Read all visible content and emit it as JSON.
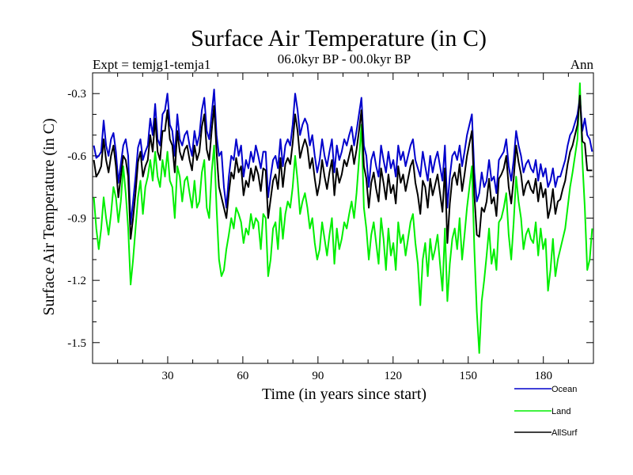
{
  "chart_data": {
    "type": "line",
    "title": "Surface Air Temperature (in C)",
    "subtitle_left": "Expt = temjg1-temja1",
    "subtitle_center": "06.0kyr BP - 00.0kyr BP",
    "subtitle_right": "Ann",
    "xlabel": "Time (in years since start)",
    "ylabel": "Surface Air Temperature (in C)",
    "xlim": [
      0,
      200
    ],
    "ylim": [
      -1.6,
      -0.2
    ],
    "xticks": [
      30,
      60,
      90,
      120,
      150,
      180
    ],
    "xtick_labels": [
      "30",
      "60",
      "90",
      "120",
      "150",
      "180"
    ],
    "yticks": [
      -1.5,
      -1.2,
      -0.9,
      -0.6,
      -0.3
    ],
    "ytick_labels": [
      "-1.5",
      "-1.2",
      "-0.9",
      "-0.6",
      "-0.3"
    ],
    "series": [
      {
        "name": "Ocean",
        "color": "#0000cc",
        "values": [
          -0.55,
          -0.61,
          -0.6,
          -0.58,
          -0.43,
          -0.55,
          -0.6,
          -0.52,
          -0.49,
          -0.58,
          -0.73,
          -0.64,
          -0.55,
          -0.52,
          -0.6,
          -0.93,
          -0.82,
          -0.7,
          -0.56,
          -0.52,
          -0.62,
          -0.58,
          -0.55,
          -0.42,
          -0.5,
          -0.35,
          -0.52,
          -0.55,
          -0.4,
          -0.38,
          -0.3,
          -0.45,
          -0.48,
          -0.6,
          -0.4,
          -0.52,
          -0.55,
          -0.5,
          -0.48,
          -0.55,
          -0.6,
          -0.48,
          -0.55,
          -0.5,
          -0.38,
          -0.32,
          -0.48,
          -0.52,
          -0.4,
          -0.28,
          -0.5,
          -0.6,
          -0.58,
          -0.75,
          -0.85,
          -0.7,
          -0.6,
          -0.62,
          -0.52,
          -0.6,
          -0.55,
          -0.7,
          -0.62,
          -0.66,
          -0.58,
          -0.63,
          -0.55,
          -0.6,
          -0.66,
          -0.58,
          -0.58,
          -0.8,
          -0.7,
          -0.62,
          -0.6,
          -0.66,
          -0.52,
          -0.65,
          -0.55,
          -0.52,
          -0.55,
          -0.45,
          -0.3,
          -0.38,
          -0.5,
          -0.45,
          -0.42,
          -0.45,
          -0.55,
          -0.5,
          -0.6,
          -0.68,
          -0.62,
          -0.52,
          -0.6,
          -0.65,
          -0.58,
          -0.52,
          -0.68,
          -0.55,
          -0.62,
          -0.58,
          -0.52,
          -0.55,
          -0.5,
          -0.46,
          -0.55,
          -0.48,
          -0.4,
          -0.32,
          -0.55,
          -0.6,
          -0.75,
          -0.62,
          -0.58,
          -0.65,
          -0.7,
          -0.55,
          -0.62,
          -0.68,
          -0.58,
          -0.66,
          -0.62,
          -0.7,
          -0.55,
          -0.62,
          -0.58,
          -0.65,
          -0.6,
          -0.55,
          -0.52,
          -0.62,
          -0.66,
          -0.7,
          -0.58,
          -0.65,
          -0.72,
          -0.6,
          -0.68,
          -0.62,
          -0.58,
          -0.65,
          -0.72,
          -0.55,
          -0.85,
          -0.7,
          -0.6,
          -0.58,
          -0.62,
          -0.55,
          -0.65,
          -0.58,
          -0.5,
          -0.45,
          -0.4,
          -0.68,
          -0.82,
          -0.78,
          -0.68,
          -0.75,
          -0.72,
          -0.62,
          -0.72,
          -0.7,
          -0.78,
          -0.62,
          -0.6,
          -0.58,
          -0.52,
          -0.65,
          -0.72,
          -0.62,
          -0.48,
          -0.55,
          -0.6,
          -0.68,
          -0.64,
          -0.62,
          -0.66,
          -0.68,
          -0.62,
          -0.72,
          -0.64,
          -0.7,
          -0.66,
          -0.75,
          -0.72,
          -0.66,
          -0.75,
          -0.7,
          -0.7,
          -0.66,
          -0.62,
          -0.55,
          -0.5,
          -0.48,
          -0.44,
          -0.4,
          -0.32,
          -0.48,
          -0.42,
          -0.5,
          -0.52,
          -0.58
        ]
      },
      {
        "name": "Land",
        "color": "#00ee00",
        "values": [
          -0.8,
          -0.95,
          -1.05,
          -0.95,
          -0.8,
          -0.9,
          -0.98,
          -0.88,
          -0.75,
          -0.8,
          -0.92,
          -0.82,
          -0.65,
          -0.78,
          -0.95,
          -1.22,
          -1.1,
          -0.95,
          -0.8,
          -0.72,
          -0.88,
          -0.75,
          -0.7,
          -0.62,
          -0.72,
          -0.58,
          -0.7,
          -0.75,
          -0.62,
          -0.7,
          -0.58,
          -0.72,
          -0.75,
          -0.9,
          -0.65,
          -0.7,
          -0.82,
          -0.72,
          -0.7,
          -0.78,
          -0.85,
          -0.72,
          -0.85,
          -0.82,
          -0.68,
          -0.62,
          -0.85,
          -0.9,
          -0.68,
          -0.55,
          -0.85,
          -1.1,
          -1.18,
          -1.15,
          -1.05,
          -0.98,
          -0.9,
          -0.95,
          -0.85,
          -0.88,
          -0.92,
          -1.02,
          -0.95,
          -0.98,
          -0.88,
          -0.95,
          -0.9,
          -0.92,
          -1.05,
          -0.88,
          -0.9,
          -1.18,
          -1.1,
          -0.95,
          -0.92,
          -1.05,
          -0.85,
          -1.0,
          -0.88,
          -0.82,
          -0.85,
          -0.75,
          -0.6,
          -0.72,
          -0.88,
          -0.82,
          -0.78,
          -0.85,
          -0.95,
          -0.9,
          -1.02,
          -1.1,
          -1.05,
          -0.92,
          -1.0,
          -1.08,
          -0.98,
          -0.9,
          -1.12,
          -0.95,
          -1.05,
          -1.0,
          -0.92,
          -0.95,
          -0.88,
          -0.82,
          -0.9,
          -0.78,
          -0.62,
          -0.45,
          -0.85,
          -0.95,
          -1.1,
          -0.98,
          -0.92,
          -1.02,
          -1.12,
          -0.9,
          -1.0,
          -1.15,
          -0.95,
          -1.08,
          -1.02,
          -1.15,
          -0.92,
          -1.02,
          -0.98,
          -1.08,
          -1.0,
          -0.92,
          -0.88,
          -1.02,
          -1.12,
          -1.32,
          -1.1,
          -1.02,
          -1.18,
          -1.0,
          -1.1,
          -1.05,
          -0.98,
          -1.12,
          -1.25,
          -0.95,
          -1.3,
          -1.12,
          -1.0,
          -0.95,
          -1.05,
          -0.9,
          -1.1,
          -0.98,
          -0.85,
          -0.75,
          -0.65,
          -1.05,
          -1.35,
          -1.55,
          -1.3,
          -1.2,
          -1.08,
          -0.95,
          -1.12,
          -1.05,
          -1.15,
          -0.92,
          -0.9,
          -0.85,
          -0.78,
          -0.98,
          -1.1,
          -0.92,
          -0.7,
          -0.82,
          -0.9,
          -1.05,
          -0.98,
          -0.95,
          -1.0,
          -1.02,
          -0.92,
          -1.08,
          -0.95,
          -1.05,
          -1.0,
          -1.25,
          -1.15,
          -1.0,
          -1.18,
          -1.1,
          -1.05,
          -1.0,
          -0.95,
          -0.85,
          -0.75,
          -0.68,
          -0.6,
          -0.52,
          -0.25,
          -0.62,
          -0.85,
          -1.15,
          -1.1,
          -0.95
        ]
      },
      {
        "name": "AllSurf",
        "color": "#000000",
        "values": [
          -0.62,
          -0.7,
          -0.68,
          -0.65,
          -0.52,
          -0.62,
          -0.68,
          -0.6,
          -0.55,
          -0.65,
          -0.8,
          -0.7,
          -0.6,
          -0.62,
          -0.7,
          -1.0,
          -0.9,
          -0.78,
          -0.63,
          -0.58,
          -0.7,
          -0.65,
          -0.62,
          -0.5,
          -0.58,
          -0.42,
          -0.58,
          -0.62,
          -0.48,
          -0.48,
          -0.38,
          -0.52,
          -0.55,
          -0.68,
          -0.48,
          -0.58,
          -0.62,
          -0.57,
          -0.55,
          -0.62,
          -0.67,
          -0.55,
          -0.62,
          -0.58,
          -0.46,
          -0.4,
          -0.57,
          -0.62,
          -0.48,
          -0.36,
          -0.58,
          -0.75,
          -0.8,
          -0.85,
          -0.9,
          -0.78,
          -0.68,
          -0.71,
          -0.61,
          -0.68,
          -0.65,
          -0.79,
          -0.72,
          -0.75,
          -0.66,
          -0.72,
          -0.65,
          -0.69,
          -0.77,
          -0.66,
          -0.67,
          -0.9,
          -0.81,
          -0.72,
          -0.69,
          -0.76,
          -0.61,
          -0.75,
          -0.64,
          -0.61,
          -0.64,
          -0.54,
          -0.4,
          -0.48,
          -0.61,
          -0.56,
          -0.52,
          -0.56,
          -0.66,
          -0.61,
          -0.71,
          -0.79,
          -0.73,
          -0.62,
          -0.7,
          -0.76,
          -0.68,
          -0.62,
          -0.79,
          -0.66,
          -0.73,
          -0.69,
          -0.62,
          -0.65,
          -0.6,
          -0.55,
          -0.64,
          -0.57,
          -0.48,
          -0.38,
          -0.65,
          -0.71,
          -0.85,
          -0.73,
          -0.68,
          -0.76,
          -0.82,
          -0.66,
          -0.73,
          -0.81,
          -0.69,
          -0.78,
          -0.74,
          -0.83,
          -0.65,
          -0.73,
          -0.69,
          -0.77,
          -0.71,
          -0.65,
          -0.62,
          -0.73,
          -0.79,
          -0.88,
          -0.72,
          -0.75,
          -0.85,
          -0.71,
          -0.79,
          -0.74,
          -0.69,
          -0.78,
          -0.87,
          -0.66,
          -1.02,
          -0.83,
          -0.71,
          -0.68,
          -0.74,
          -0.64,
          -0.77,
          -0.69,
          -0.6,
          -0.54,
          -0.48,
          -0.79,
          -0.98,
          -0.99,
          -0.85,
          -0.87,
          -0.82,
          -0.71,
          -0.83,
          -0.8,
          -0.89,
          -0.71,
          -0.69,
          -0.66,
          -0.6,
          -0.75,
          -0.83,
          -0.71,
          -0.55,
          -0.63,
          -0.69,
          -0.79,
          -0.74,
          -0.72,
          -0.76,
          -0.78,
          -0.71,
          -0.82,
          -0.73,
          -0.8,
          -0.76,
          -0.9,
          -0.85,
          -0.76,
          -0.88,
          -0.82,
          -0.81,
          -0.76,
          -0.72,
          -0.64,
          -0.58,
          -0.55,
          -0.5,
          -0.45,
          -0.31,
          -0.53,
          -0.54,
          -0.67,
          -0.67,
          -0.67
        ]
      }
    ],
    "legend": {
      "position": "bottom-right",
      "entries": [
        "Ocean",
        "Land",
        "AllSurf"
      ]
    }
  }
}
